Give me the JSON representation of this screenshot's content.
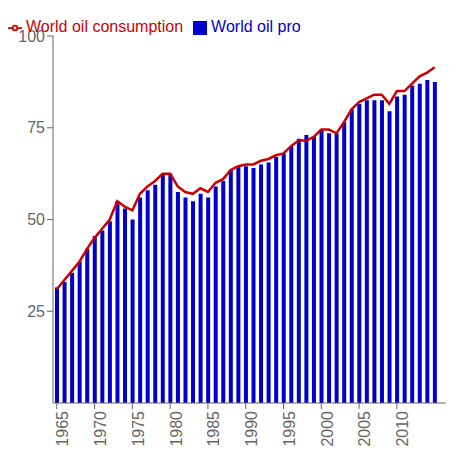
{
  "chart_data": {
    "type": "bar",
    "x": [
      1965,
      1966,
      1967,
      1968,
      1969,
      1970,
      1971,
      1972,
      1973,
      1974,
      1975,
      1976,
      1977,
      1978,
      1979,
      1980,
      1981,
      1982,
      1983,
      1984,
      1985,
      1986,
      1987,
      1988,
      1989,
      1990,
      1991,
      1992,
      1993,
      1994,
      1995,
      1996,
      1997,
      1998,
      1999,
      2000,
      2001,
      2002,
      2003,
      2004,
      2005,
      2006,
      2007,
      2008,
      2009,
      2010,
      2011,
      2012,
      2013,
      2014,
      2015
    ],
    "series": [
      {
        "name": "World oil consumption",
        "type": "line",
        "color": "#cc0000",
        "values": [
          31.0,
          33.5,
          36.0,
          38.5,
          42.0,
          45.0,
          47.5,
          50.0,
          55.0,
          53.5,
          52.5,
          57.0,
          59.0,
          60.5,
          62.5,
          62.5,
          59.0,
          57.5,
          57.0,
          58.5,
          57.5,
          60.0,
          61.0,
          63.5,
          64.5,
          65.0,
          65.0,
          66.0,
          66.5,
          67.5,
          68.0,
          70.0,
          71.5,
          71.5,
          72.5,
          74.5,
          74.5,
          73.5,
          76.5,
          80.0,
          82.0,
          83.0,
          84.0,
          84.0,
          81.5,
          85.0,
          85.0,
          87.0,
          89.0,
          90.0,
          91.5
        ]
      },
      {
        "name": "World oil pro",
        "type": "bar",
        "color": "#0000cc",
        "values": [
          31.5,
          33.0,
          35.5,
          38.5,
          42.0,
          45.5,
          47.0,
          49.5,
          55.0,
          53.0,
          50.0,
          56.0,
          58.0,
          59.5,
          62.5,
          62.5,
          57.5,
          56.0,
          55.0,
          57.0,
          56.0,
          59.0,
          60.5,
          63.5,
          64.5,
          64.5,
          64.0,
          65.0,
          65.5,
          67.0,
          68.0,
          70.0,
          72.0,
          73.0,
          72.5,
          74.5,
          73.5,
          73.5,
          76.5,
          80.0,
          81.5,
          82.5,
          82.5,
          82.5,
          79.5,
          83.5,
          84.0,
          86.5,
          87.0,
          88.0,
          87.5
        ]
      }
    ],
    "xlim": [
      1964.5,
      2016.5
    ],
    "xticks": [
      1965,
      1970,
      1975,
      1980,
      1985,
      1990,
      1995,
      2000,
      2005,
      2010
    ],
    "ylim": [
      0,
      100
    ],
    "yticks": [
      25,
      50,
      75,
      100
    ],
    "grid": false,
    "legend": "upper left"
  }
}
